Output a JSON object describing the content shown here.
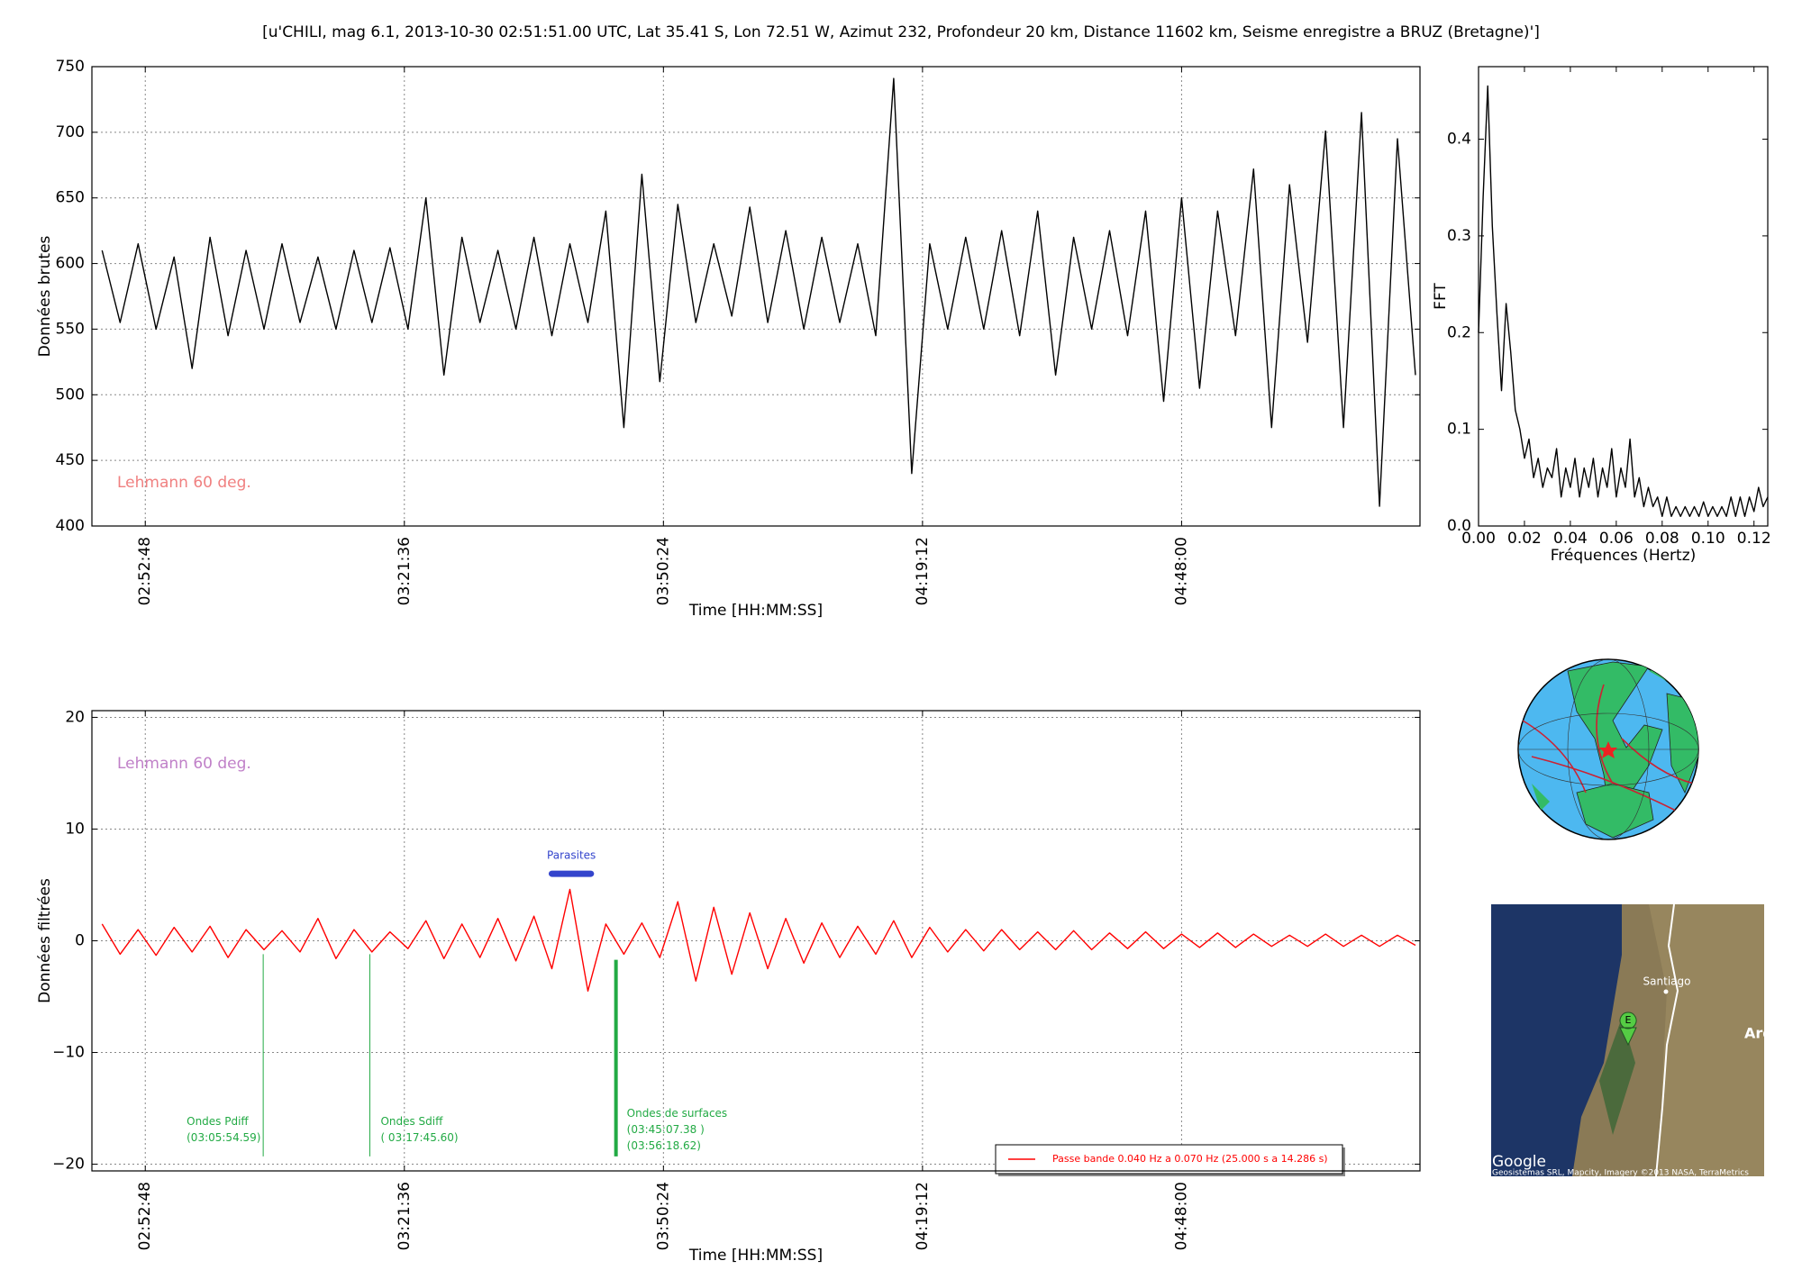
{
  "title": "[u'CHILI, mag 6.1, 2013-10-30 02:51:51.00 UTC, Lat 35.41 S, Lon 72.51 W, Azimut 232, Profondeur 20 km, Distance 11602 km, Seisme enregistre a BRUZ (Bretagne)']",
  "chart_data": [
    {
      "type": "line",
      "xlabel": "Time [HH:MM:SS]",
      "ylabel": "Données brutes",
      "grid": true,
      "note": {
        "text": "Lehmann 60 deg.",
        "color": "#f08080"
      },
      "xlim": [
        "02:46:52",
        "05:14:30"
      ],
      "xticks": [
        "02:52:48",
        "03:21:36",
        "03:50:24",
        "04:19:12",
        "04:48:00"
      ],
      "ylim": [
        400,
        750
      ],
      "yticks": [
        400,
        450,
        500,
        550,
        600,
        650,
        700,
        750
      ],
      "x": [
        "02:48:00",
        "02:50:00",
        "02:52:00",
        "02:54:00",
        "02:56:00",
        "02:58:00",
        "03:00:00",
        "03:02:00",
        "03:04:00",
        "03:06:00",
        "03:08:00",
        "03:10:00",
        "03:12:00",
        "03:14:00",
        "03:16:00",
        "03:18:00",
        "03:20:00",
        "03:22:00",
        "03:24:00",
        "03:26:00",
        "03:28:00",
        "03:30:00",
        "03:32:00",
        "03:34:00",
        "03:36:00",
        "03:38:00",
        "03:40:00",
        "03:42:00",
        "03:44:00",
        "03:46:00",
        "03:48:00",
        "03:50:00",
        "03:52:00",
        "03:54:00",
        "03:56:00",
        "03:58:00",
        "04:00:00",
        "04:02:00",
        "04:04:00",
        "04:06:00",
        "04:08:00",
        "04:10:00",
        "04:12:00",
        "04:14:00",
        "04:16:00",
        "04:18:00",
        "04:20:00",
        "04:22:00",
        "04:24:00",
        "04:26:00",
        "04:28:00",
        "04:30:00",
        "04:32:00",
        "04:34:00",
        "04:36:00",
        "04:38:00",
        "04:40:00",
        "04:42:00",
        "04:44:00",
        "04:46:00",
        "04:48:00",
        "04:50:00",
        "04:52:00",
        "04:54:00",
        "04:56:00",
        "04:58:00",
        "05:00:00",
        "05:02:00",
        "05:04:00",
        "05:06:00",
        "05:08:00",
        "05:10:00",
        "05:12:00",
        "05:14:00"
      ],
      "series": [
        {
          "color": "#000000",
          "values": [
            610,
            555,
            615,
            550,
            605,
            520,
            620,
            545,
            610,
            550,
            615,
            555,
            605,
            550,
            610,
            555,
            612,
            550,
            650,
            515,
            620,
            555,
            610,
            550,
            620,
            545,
            615,
            555,
            640,
            475,
            668,
            510,
            645,
            555,
            615,
            560,
            643,
            555,
            625,
            550,
            620,
            555,
            615,
            545,
            741,
            440,
            615,
            550,
            620,
            550,
            625,
            545,
            640,
            515,
            620,
            550,
            625,
            545,
            640,
            495,
            650,
            505,
            640,
            545,
            672,
            475,
            660,
            540,
            701,
            475,
            715,
            415,
            695,
            515
          ]
        }
      ]
    },
    {
      "type": "line",
      "xlabel": "Fréquences (Hertz)",
      "ylabel": "FFT",
      "grid": false,
      "xlim": [
        0,
        0.126
      ],
      "xticks": [
        {
          "value": 0,
          "label": "0.00"
        },
        {
          "value": 0.02,
          "label": "0.02"
        },
        {
          "value": 0.04,
          "label": "0.04"
        },
        {
          "value": 0.06,
          "label": "0.06"
        },
        {
          "value": 0.08,
          "label": "0.08"
        },
        {
          "value": 0.1,
          "label": "0.10"
        },
        {
          "value": 0.12,
          "label": "0.12"
        }
      ],
      "ylim": [
        0,
        0.475
      ],
      "yticks": [
        {
          "value": 0,
          "label": "0.0"
        },
        {
          "value": 0.1,
          "label": "0.1"
        },
        {
          "value": 0.2,
          "label": "0.2"
        },
        {
          "value": 0.3,
          "label": "0.3"
        },
        {
          "value": 0.4,
          "label": "0.4"
        }
      ],
      "x": [
        0,
        0.002,
        0.004,
        0.006,
        0.008,
        0.01,
        0.012,
        0.014,
        0.016,
        0.018,
        0.02,
        0.022,
        0.024,
        0.026,
        0.028,
        0.03,
        0.032,
        0.034,
        0.036,
        0.038,
        0.04,
        0.042,
        0.044,
        0.046,
        0.048,
        0.05,
        0.052,
        0.054,
        0.056,
        0.058,
        0.06,
        0.062,
        0.064,
        0.066,
        0.068,
        0.07,
        0.072,
        0.074,
        0.076,
        0.078,
        0.08,
        0.082,
        0.084,
        0.086,
        0.088,
        0.09,
        0.092,
        0.094,
        0.096,
        0.098,
        0.1,
        0.102,
        0.104,
        0.106,
        0.108,
        0.11,
        0.112,
        0.114,
        0.116,
        0.118,
        0.12,
        0.122,
        0.124,
        0.126
      ],
      "series": [
        {
          "color": "#000000",
          "values": [
            0.2,
            0.34,
            0.455,
            0.31,
            0.22,
            0.14,
            0.23,
            0.18,
            0.12,
            0.1,
            0.07,
            0.09,
            0.05,
            0.07,
            0.04,
            0.06,
            0.05,
            0.08,
            0.03,
            0.06,
            0.04,
            0.07,
            0.03,
            0.06,
            0.04,
            0.07,
            0.03,
            0.06,
            0.04,
            0.08,
            0.03,
            0.06,
            0.04,
            0.09,
            0.03,
            0.05,
            0.02,
            0.04,
            0.02,
            0.03,
            0.01,
            0.03,
            0.01,
            0.02,
            0.01,
            0.02,
            0.01,
            0.02,
            0.01,
            0.025,
            0.01,
            0.02,
            0.01,
            0.02,
            0.01,
            0.03,
            0.01,
            0.03,
            0.01,
            0.03,
            0.015,
            0.04,
            0.02,
            0.03
          ]
        }
      ]
    },
    {
      "type": "line",
      "xlabel": "Time [HH:MM:SS]",
      "ylabel": "Données filtrées",
      "grid": true,
      "legend": "lower right",
      "note": {
        "text": "Lehmann 60 deg.",
        "color": "#c080c8"
      },
      "xlim": [
        "02:46:52",
        "05:14:30"
      ],
      "xticks": [
        "02:52:48",
        "03:21:36",
        "03:50:24",
        "04:19:12",
        "04:48:00"
      ],
      "ylim": [
        -20.6,
        20.6
      ],
      "yticks": [
        {
          "value": -20,
          "label": "−20"
        },
        {
          "value": -10,
          "label": "−10"
        },
        0,
        10,
        20
      ],
      "x": [
        "02:48:00",
        "02:50:00",
        "02:52:00",
        "02:54:00",
        "02:56:00",
        "02:58:00",
        "03:00:00",
        "03:02:00",
        "03:04:00",
        "03:06:00",
        "03:08:00",
        "03:10:00",
        "03:12:00",
        "03:14:00",
        "03:16:00",
        "03:18:00",
        "03:20:00",
        "03:22:00",
        "03:24:00",
        "03:26:00",
        "03:28:00",
        "03:30:00",
        "03:32:00",
        "03:34:00",
        "03:36:00",
        "03:38:00",
        "03:40:00",
        "03:42:00",
        "03:44:00",
        "03:46:00",
        "03:48:00",
        "03:50:00",
        "03:52:00",
        "03:54:00",
        "03:56:00",
        "03:58:00",
        "04:00:00",
        "04:02:00",
        "04:04:00",
        "04:06:00",
        "04:08:00",
        "04:10:00",
        "04:12:00",
        "04:14:00",
        "04:16:00",
        "04:18:00",
        "04:20:00",
        "04:22:00",
        "04:24:00",
        "04:26:00",
        "04:28:00",
        "04:30:00",
        "04:32:00",
        "04:34:00",
        "04:36:00",
        "04:38:00",
        "04:40:00",
        "04:42:00",
        "04:44:00",
        "04:46:00",
        "04:48:00",
        "04:50:00",
        "04:52:00",
        "04:54:00",
        "04:56:00",
        "04:58:00",
        "05:00:00",
        "05:02:00",
        "05:04:00",
        "05:06:00",
        "05:08:00",
        "05:10:00",
        "05:12:00",
        "05:14:00"
      ],
      "series": [
        {
          "name": "Passe bande 0.040 Hz a 0.070 Hz (25.000 s a 14.286 s)",
          "color": "#ff0000",
          "values": [
            1.5,
            -1.2,
            1.0,
            -1.3,
            1.2,
            -1.0,
            1.3,
            -1.5,
            1.0,
            -0.8,
            0.9,
            -1.0,
            2.0,
            -1.6,
            1.0,
            -1.0,
            0.8,
            -0.7,
            1.8,
            -1.6,
            1.5,
            -1.5,
            2.0,
            -1.8,
            2.2,
            -2.5,
            4.6,
            -4.5,
            1.5,
            -1.2,
            1.6,
            -1.5,
            3.5,
            -3.6,
            3.0,
            -3.0,
            2.5,
            -2.5,
            2.0,
            -2.0,
            1.6,
            -1.5,
            1.3,
            -1.2,
            1.8,
            -1.5,
            1.2,
            -1.0,
            1.0,
            -0.9,
            1.0,
            -0.8,
            0.8,
            -0.8,
            0.9,
            -0.8,
            0.7,
            -0.7,
            0.8,
            -0.7,
            0.6,
            -0.6,
            0.7,
            -0.6,
            0.6,
            -0.5,
            0.5,
            -0.5,
            0.6,
            -0.5,
            0.5,
            -0.5,
            0.5,
            -0.4
          ]
        }
      ],
      "parasites": {
        "label": "Parasites",
        "color": "#3344cc",
        "x": [
          "03:38:00",
          "03:42:20"
        ],
        "y": 6
      },
      "annotations": [
        {
          "label": "Ondes Pdiff",
          "times": [
            "(03:05:54.59)"
          ],
          "x": "03:05:54.59",
          "y": [
            -1.2,
            -19.3
          ],
          "color": "#22aa44",
          "line_width": 1
        },
        {
          "label": "Ondes Sdiff",
          "times": [
            "( 03:17:45.60)"
          ],
          "x": "03:17:45.60",
          "y": [
            -1.2,
            -19.3
          ],
          "color": "#22aa44",
          "line_width": 1
        },
        {
          "label": "Ondes de surfaces",
          "times": [
            "(03:45:07.38 )",
            "(03:56:18.62)"
          ],
          "x": "03:45:07.38",
          "y": [
            -1.7,
            -19.3
          ],
          "color": "#22aa44",
          "line_width": 4
        }
      ]
    }
  ],
  "map": {
    "labels": [
      "Santiago",
      "Arg"
    ],
    "pin": "E",
    "logo": "Google",
    "attribution": "Geosistemas SRL, Mapcity, Imagery ©2013 NASA, TerraMetrics"
  }
}
